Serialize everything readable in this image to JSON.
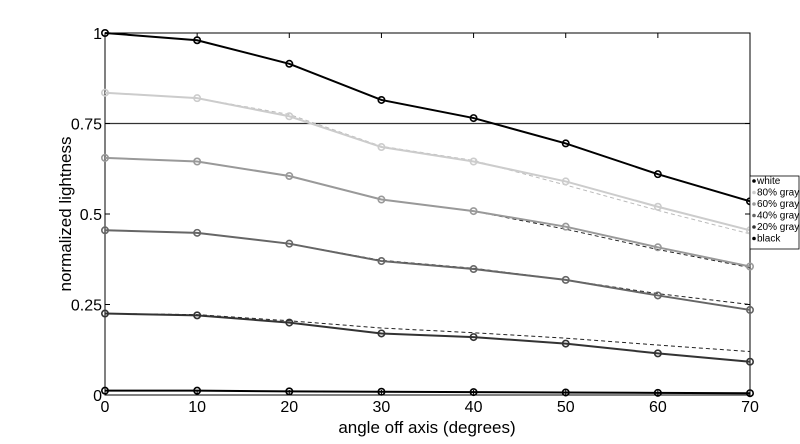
{
  "chart_data": {
    "type": "line",
    "xlabel": "angle off axis (degrees)",
    "ylabel": "normalized lightness",
    "xlim": [
      0,
      70
    ],
    "ylim": [
      0,
      1
    ],
    "x_ticks": [
      0,
      10,
      20,
      30,
      40,
      50,
      60,
      70
    ],
    "y_ticks": [
      {
        "value": 0,
        "label": "0"
      },
      {
        "value": 0.25,
        "label": "0.25"
      },
      {
        "value": 0.5,
        "label": "0.5"
      },
      {
        "value": 0.75,
        "label": "0.75"
      },
      {
        "value": 1,
        "label": "1"
      }
    ],
    "reference_line": 0.75,
    "grid": false,
    "legend_position": "right",
    "x": [
      0,
      10,
      20,
      30,
      40,
      50,
      60,
      70
    ],
    "series": [
      {
        "name": "white",
        "color": "#000000",
        "values": [
          1.0,
          0.98,
          0.915,
          0.815,
          0.765,
          0.695,
          0.61,
          0.535
        ]
      },
      {
        "name": "80% gray",
        "color": "#cccccc",
        "values": [
          0.835,
          0.82,
          0.77,
          0.685,
          0.645,
          0.59,
          0.52,
          0.455
        ],
        "reference": [
          0.835,
          0.82,
          0.775,
          0.687,
          0.648,
          0.58,
          0.51,
          0.445
        ]
      },
      {
        "name": "60% gray",
        "color": "#999999",
        "values": [
          0.655,
          0.645,
          0.605,
          0.54,
          0.508,
          0.465,
          0.408,
          0.355
        ],
        "reference": [
          0.655,
          0.645,
          0.605,
          0.54,
          0.508,
          0.458,
          0.402,
          0.352
        ]
      },
      {
        "name": "40% gray",
        "color": "#666666",
        "values": [
          0.455,
          0.448,
          0.418,
          0.37,
          0.348,
          0.318,
          0.275,
          0.235
        ],
        "reference": [
          0.455,
          0.448,
          0.418,
          0.372,
          0.35,
          0.318,
          0.28,
          0.25
        ]
      },
      {
        "name": "20% gray",
        "color": "#333333",
        "values": [
          0.225,
          0.22,
          0.2,
          0.17,
          0.16,
          0.142,
          0.115,
          0.092
        ],
        "reference": [
          0.225,
          0.222,
          0.205,
          0.185,
          0.172,
          0.157,
          0.138,
          0.12
        ]
      },
      {
        "name": "black",
        "color": "#000000",
        "values": [
          0.012,
          0.012,
          0.01,
          0.009,
          0.008,
          0.007,
          0.006,
          0.005
        ]
      }
    ]
  }
}
